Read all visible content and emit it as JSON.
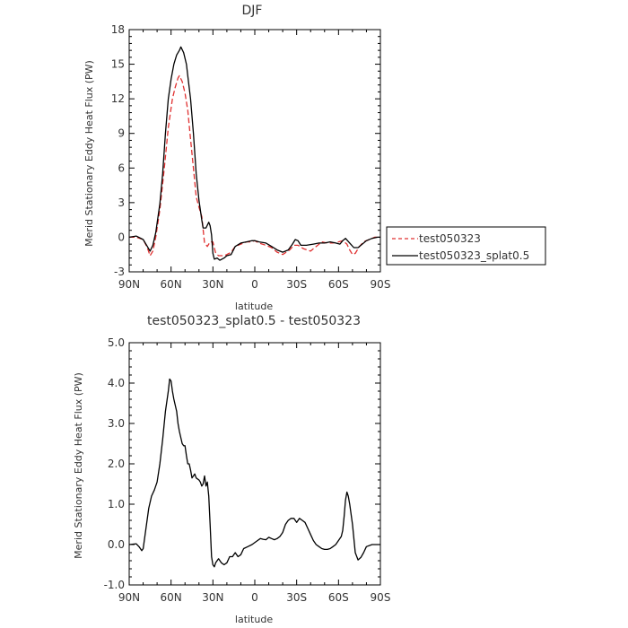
{
  "chart_data": [
    {
      "type": "line",
      "title": "DJF",
      "xlabel": "latitude",
      "ylabel": "Merid Stationary Eddy Heat Flux (PW)",
      "xlim": [
        90,
        -90
      ],
      "ylim": [
        -3,
        18
      ],
      "xticks": [
        {
          "v": 90,
          "label": "90N"
        },
        {
          "v": 60,
          "label": "60N"
        },
        {
          "v": 30,
          "label": "30N"
        },
        {
          "v": 0,
          "label": "0"
        },
        {
          "v": -30,
          "label": "30S"
        },
        {
          "v": -60,
          "label": "60S"
        },
        {
          "v": -90,
          "label": "90S"
        }
      ],
      "yticks": [
        {
          "v": -3,
          "label": "-3"
        },
        {
          "v": 0,
          "label": "0"
        },
        {
          "v": 3,
          "label": "3"
        },
        {
          "v": 6,
          "label": "6"
        },
        {
          "v": 9,
          "label": "9"
        },
        {
          "v": 12,
          "label": "12"
        },
        {
          "v": 15,
          "label": "15"
        },
        {
          "v": 18,
          "label": "18"
        }
      ],
      "legend": {
        "placement": "right"
      },
      "series": [
        {
          "name": "test050323",
          "color": "#e03030",
          "dash": true,
          "points": [
            [
              90,
              0
            ],
            [
              85,
              0
            ],
            [
              80,
              -0.2
            ],
            [
              77,
              -0.9
            ],
            [
              75,
              -1.6
            ],
            [
              73,
              -1.2
            ],
            [
              71,
              0
            ],
            [
              68,
              2.4
            ],
            [
              65,
              5.8
            ],
            [
              62,
              9.5
            ],
            [
              59,
              12
            ],
            [
              57,
              13
            ],
            [
              55,
              13.8
            ],
            [
              54,
              14
            ],
            [
              52,
              13.5
            ],
            [
              50,
              12.5
            ],
            [
              48,
              11
            ],
            [
              46,
              8.5
            ],
            [
              44,
              6
            ],
            [
              42,
              3.5
            ],
            [
              40,
              2.6
            ],
            [
              38,
              1.8
            ],
            [
              36,
              -0.5
            ],
            [
              34,
              -0.8
            ],
            [
              32,
              -0.4
            ],
            [
              30,
              -0.4
            ],
            [
              28,
              -1.4
            ],
            [
              26,
              -1.6
            ],
            [
              24,
              -1.6
            ],
            [
              22,
              -1.6
            ],
            [
              20,
              -1.5
            ],
            [
              17,
              -1.3
            ],
            [
              14,
              -0.8
            ],
            [
              10,
              -0.6
            ],
            [
              6,
              -0.4
            ],
            [
              3,
              -0.4
            ],
            [
              0,
              -0.3
            ],
            [
              -3,
              -0.5
            ],
            [
              -8,
              -0.7
            ],
            [
              -12,
              -0.9
            ],
            [
              -16,
              -1.3
            ],
            [
              -20,
              -1.5
            ],
            [
              -25,
              -1.1
            ],
            [
              -28,
              -0.7
            ],
            [
              -31,
              -0.7
            ],
            [
              -35,
              -1
            ],
            [
              -40,
              -1.2
            ],
            [
              -44,
              -0.8
            ],
            [
              -48,
              -0.4
            ],
            [
              -52,
              -0.5
            ],
            [
              -56,
              -0.5
            ],
            [
              -60,
              -0.4
            ],
            [
              -63,
              -0.3
            ],
            [
              -66,
              -0.6
            ],
            [
              -68,
              -1.1
            ],
            [
              -70,
              -1.5
            ],
            [
              -72,
              -1.4
            ],
            [
              -75,
              -0.8
            ],
            [
              -78,
              -0.4
            ],
            [
              -82,
              -0.2
            ],
            [
              -86,
              0
            ],
            [
              -90,
              0
            ]
          ]
        },
        {
          "name": "test050323_splat0.5",
          "color": "#000000",
          "dash": false,
          "points": [
            [
              90,
              0
            ],
            [
              85,
              0.1
            ],
            [
              80,
              -0.2
            ],
            [
              77,
              -0.8
            ],
            [
              75,
              -1.2
            ],
            [
              73,
              -0.7
            ],
            [
              71,
              0.4
            ],
            [
              68,
              2.9
            ],
            [
              66,
              5.5
            ],
            [
              64,
              9
            ],
            [
              62,
              12
            ],
            [
              60,
              13.7
            ],
            [
              58,
              15
            ],
            [
              56,
              15.8
            ],
            [
              54,
              16.2
            ],
            [
              53,
              16.5
            ],
            [
              51,
              16
            ],
            [
              49,
              15
            ],
            [
              48,
              14
            ],
            [
              46,
              12
            ],
            [
              44,
              9
            ],
            [
              42,
              5.5
            ],
            [
              40,
              3.2
            ],
            [
              38,
              1.5
            ],
            [
              37,
              0.8
            ],
            [
              35,
              0.8
            ],
            [
              33,
              1.3
            ],
            [
              32,
              1
            ],
            [
              31,
              0.2
            ],
            [
              30,
              -1.4
            ],
            [
              29,
              -1.9
            ],
            [
              27,
              -1.8
            ],
            [
              25,
              -2
            ],
            [
              22,
              -1.8
            ],
            [
              20,
              -1.6
            ],
            [
              17,
              -1.5
            ],
            [
              14,
              -0.8
            ],
            [
              10,
              -0.5
            ],
            [
              6,
              -0.4
            ],
            [
              2,
              -0.3
            ],
            [
              0,
              -0.3
            ],
            [
              -3,
              -0.4
            ],
            [
              -8,
              -0.5
            ],
            [
              -12,
              -0.8
            ],
            [
              -16,
              -1.1
            ],
            [
              -20,
              -1.3
            ],
            [
              -24,
              -1.1
            ],
            [
              -27,
              -0.6
            ],
            [
              -29,
              -0.2
            ],
            [
              -31,
              -0.3
            ],
            [
              -33,
              -0.7
            ],
            [
              -37,
              -0.7
            ],
            [
              -42,
              -0.6
            ],
            [
              -46,
              -0.5
            ],
            [
              -50,
              -0.5
            ],
            [
              -54,
              -0.4
            ],
            [
              -58,
              -0.5
            ],
            [
              -61,
              -0.6
            ],
            [
              -63,
              -0.3
            ],
            [
              -65,
              -0.1
            ],
            [
              -68,
              -0.5
            ],
            [
              -71,
              -0.9
            ],
            [
              -74,
              -0.9
            ],
            [
              -77,
              -0.6
            ],
            [
              -80,
              -0.3
            ],
            [
              -84,
              -0.1
            ],
            [
              -88,
              0
            ],
            [
              -90,
              0
            ]
          ]
        }
      ]
    },
    {
      "type": "line",
      "title": "test050323_splat0.5 - test050323",
      "xlabel": "latitude",
      "ylabel": "Merid Stationary Eddy Heat Flux (PW)",
      "xlim": [
        90,
        -90
      ],
      "ylim": [
        -1,
        5
      ],
      "xticks": [
        {
          "v": 90,
          "label": "90N"
        },
        {
          "v": 60,
          "label": "60N"
        },
        {
          "v": 30,
          "label": "30N"
        },
        {
          "v": 0,
          "label": "0"
        },
        {
          "v": -30,
          "label": "30S"
        },
        {
          "v": -60,
          "label": "60S"
        },
        {
          "v": -90,
          "label": "90S"
        }
      ],
      "yticks": [
        {
          "v": -1,
          "label": "-1.0"
        },
        {
          "v": 0,
          "label": "0.0"
        },
        {
          "v": 1,
          "label": "1.0"
        },
        {
          "v": 2,
          "label": "2.0"
        },
        {
          "v": 3,
          "label": "3.0"
        },
        {
          "v": 4,
          "label": "4.0"
        },
        {
          "v": 5,
          "label": "5.0"
        }
      ],
      "series": [
        {
          "color": "#000000",
          "dash": false,
          "points": [
            [
              90,
              0
            ],
            [
              85,
              0.02
            ],
            [
              83,
              -0.05
            ],
            [
              81,
              -0.15
            ],
            [
              80,
              -0.1
            ],
            [
              78,
              0.4
            ],
            [
              76,
              0.9
            ],
            [
              74,
              1.2
            ],
            [
              72,
              1.35
            ],
            [
              70,
              1.55
            ],
            [
              68,
              2
            ],
            [
              66,
              2.6
            ],
            [
              64,
              3.3
            ],
            [
              62,
              3.8
            ],
            [
              61,
              4.1
            ],
            [
              60,
              4.05
            ],
            [
              59,
              3.8
            ],
            [
              58,
              3.6
            ],
            [
              56,
              3.3
            ],
            [
              55,
              3
            ],
            [
              54,
              2.8
            ],
            [
              52,
              2.5
            ],
            [
              51,
              2.45
            ],
            [
              50,
              2.45
            ],
            [
              49,
              2.2
            ],
            [
              48,
              2
            ],
            [
              47,
              2
            ],
            [
              46,
              1.85
            ],
            [
              45,
              1.65
            ],
            [
              44,
              1.7
            ],
            [
              43,
              1.75
            ],
            [
              42,
              1.65
            ],
            [
              40,
              1.6
            ],
            [
              39,
              1.55
            ],
            [
              38,
              1.45
            ],
            [
              37,
              1.5
            ],
            [
              36,
              1.7
            ],
            [
              35,
              1.45
            ],
            [
              34,
              1.55
            ],
            [
              33,
              1.2
            ],
            [
              32,
              0.5
            ],
            [
              31,
              -0.3
            ],
            [
              30,
              -0.5
            ],
            [
              29,
              -0.55
            ],
            [
              28,
              -0.45
            ],
            [
              26,
              -0.35
            ],
            [
              24,
              -0.45
            ],
            [
              22,
              -0.5
            ],
            [
              20,
              -0.45
            ],
            [
              18,
              -0.3
            ],
            [
              16,
              -0.3
            ],
            [
              14,
              -0.2
            ],
            [
              12,
              -0.3
            ],
            [
              10,
              -0.25
            ],
            [
              8,
              -0.1
            ],
            [
              5,
              -0.05
            ],
            [
              2,
              0
            ],
            [
              -2,
              0.1
            ],
            [
              -4,
              0.15
            ],
            [
              -6,
              0.13
            ],
            [
              -8,
              0.12
            ],
            [
              -10,
              0.18
            ],
            [
              -12,
              0.15
            ],
            [
              -14,
              0.12
            ],
            [
              -16,
              0.15
            ],
            [
              -18,
              0.2
            ],
            [
              -20,
              0.3
            ],
            [
              -22,
              0.5
            ],
            [
              -24,
              0.6
            ],
            [
              -26,
              0.65
            ],
            [
              -28,
              0.65
            ],
            [
              -29,
              0.6
            ],
            [
              -30,
              0.55
            ],
            [
              -32,
              0.65
            ],
            [
              -34,
              0.6
            ],
            [
              -36,
              0.55
            ],
            [
              -38,
              0.4
            ],
            [
              -40,
              0.25
            ],
            [
              -42,
              0.1
            ],
            [
              -44,
              0
            ],
            [
              -46,
              -0.05
            ],
            [
              -48,
              -0.1
            ],
            [
              -50,
              -0.12
            ],
            [
              -52,
              -0.12
            ],
            [
              -54,
              -0.1
            ],
            [
              -56,
              -0.05
            ],
            [
              -58,
              0
            ],
            [
              -60,
              0.1
            ],
            [
              -62,
              0.2
            ],
            [
              -63,
              0.35
            ],
            [
              -64,
              0.7
            ],
            [
              -65,
              1.1
            ],
            [
              -66,
              1.3
            ],
            [
              -67,
              1.2
            ],
            [
              -68,
              1
            ],
            [
              -70,
              0.5
            ],
            [
              -72,
              -0.2
            ],
            [
              -74,
              -0.38
            ],
            [
              -76,
              -0.32
            ],
            [
              -78,
              -0.2
            ],
            [
              -80,
              -0.05
            ],
            [
              -84,
              0
            ],
            [
              -88,
              0
            ],
            [
              -90,
              0
            ]
          ]
        }
      ]
    }
  ]
}
